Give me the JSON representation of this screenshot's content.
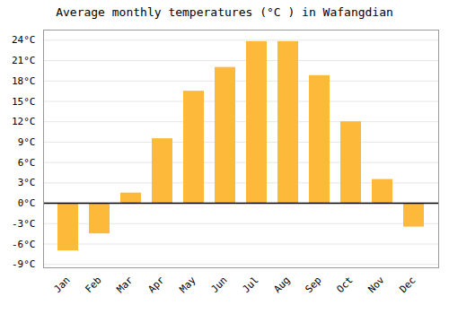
{
  "chart_data": {
    "type": "bar",
    "title": "Average monthly temperatures (°C ) in Wafangdian",
    "categories": [
      "Jan",
      "Feb",
      "Mar",
      "Apr",
      "May",
      "Jun",
      "Jul",
      "Aug",
      "Sep",
      "Oct",
      "Nov",
      "Dec"
    ],
    "values": [
      -7.0,
      -4.5,
      1.5,
      9.5,
      16.5,
      20.0,
      23.8,
      23.8,
      18.8,
      12.0,
      3.5,
      -3.5
    ],
    "color": "#FDB93A",
    "ylim": [
      -9.5,
      25.5
    ],
    "yticks": [
      {
        "value": -9,
        "label": "-9°C"
      },
      {
        "value": -6,
        "label": "-6°C"
      },
      {
        "value": -3,
        "label": "-3°C"
      },
      {
        "value": 0,
        "label": "0°C"
      },
      {
        "value": 3,
        "label": "3°C"
      },
      {
        "value": 6,
        "label": "6°C"
      },
      {
        "value": 9,
        "label": "9°C"
      },
      {
        "value": 12,
        "label": "12°C"
      },
      {
        "value": 15,
        "label": "15°C"
      },
      {
        "value": 18,
        "label": "18°C"
      },
      {
        "value": 21,
        "label": "21°C"
      },
      {
        "value": 24,
        "label": "24°C"
      }
    ],
    "grid": true
  }
}
